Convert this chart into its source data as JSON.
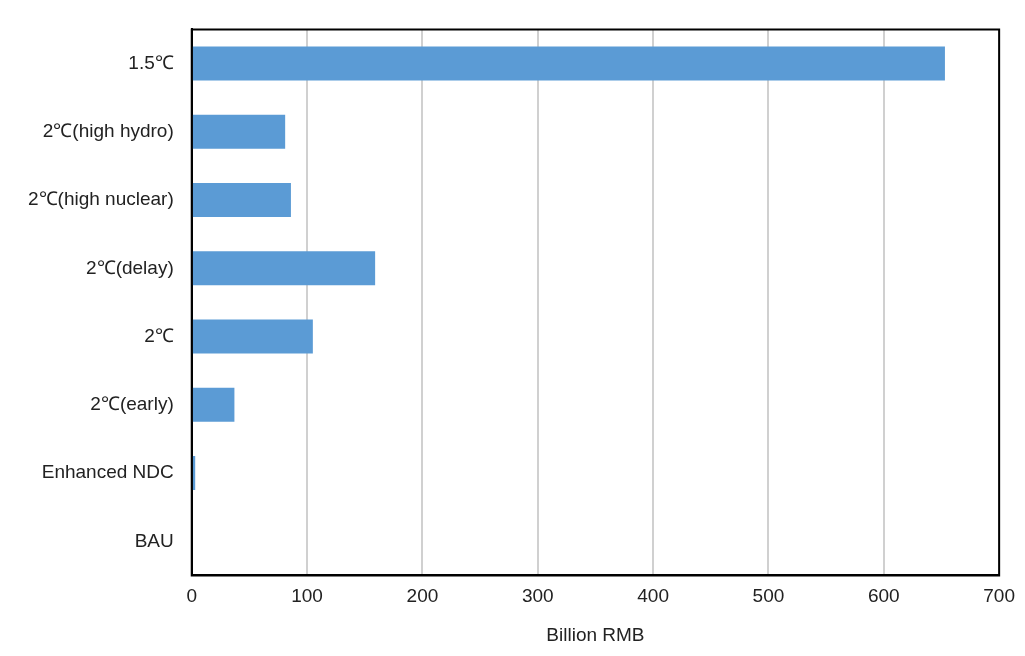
{
  "chart_data": {
    "type": "bar",
    "orientation": "horizontal",
    "xlabel": "Billion RMB",
    "categories": [
      "1.5℃",
      "2℃(high hydro)",
      "2℃(high nuclear)",
      "2℃(delay)",
      "2℃",
      "2℃(early)",
      "Enhanced NDC",
      "BAU"
    ],
    "values": [
      653,
      81,
      86,
      159,
      105,
      37,
      3,
      0
    ],
    "color": "#5b9bd5",
    "xlim": [
      0,
      700
    ],
    "xticks": [
      0,
      100,
      200,
      300,
      400,
      500,
      600,
      700
    ],
    "grid": "x",
    "legend": false
  }
}
